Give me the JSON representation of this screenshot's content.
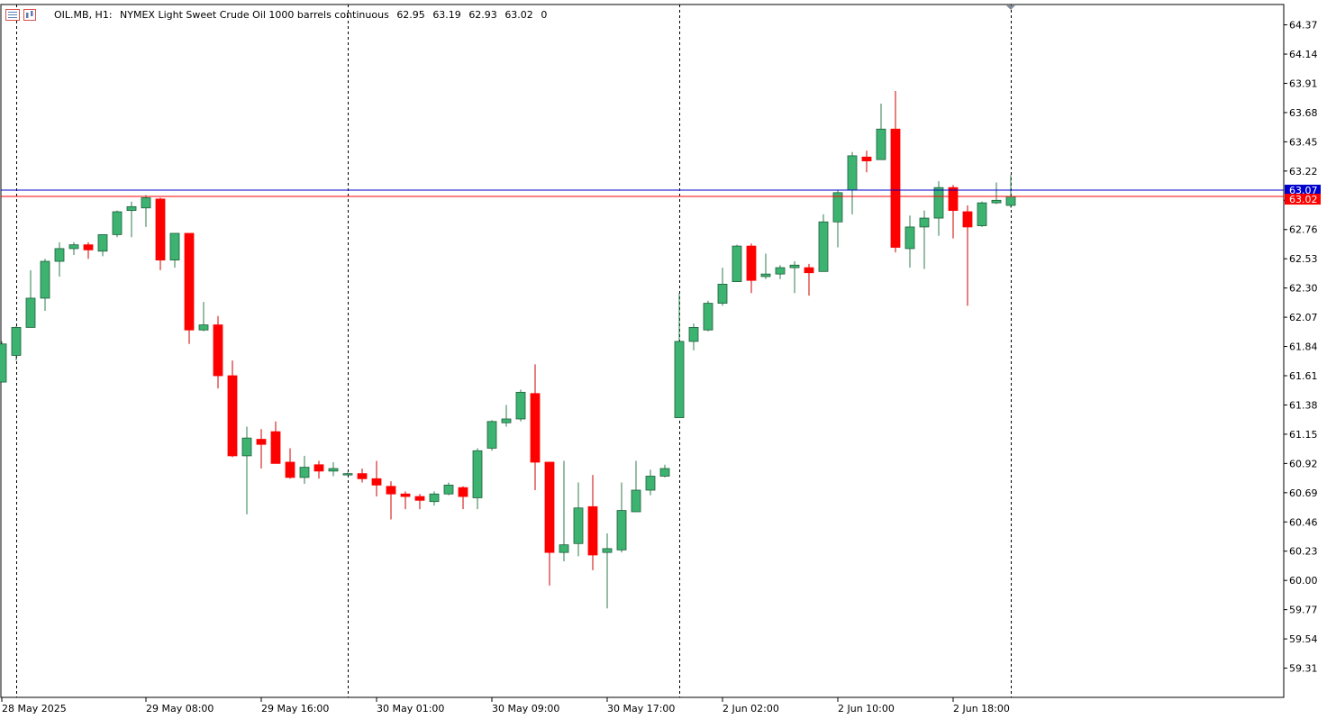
{
  "header": {
    "symbol": "OIL.MB, H1:",
    "description": "NYMEX Light Sweet Crude Oil 1000 barrels continuous",
    "open": "62.95",
    "high": "63.19",
    "low": "62.93",
    "close": "63.02",
    "volume": "0"
  },
  "icons": [
    "symbol-list-icon",
    "chart-type-icon"
  ],
  "colors": {
    "bull": "#3CB371",
    "bear": "#FF0000",
    "ask_line": "#0000CD",
    "bid_line": "#FF0000",
    "grid": "#000000"
  },
  "price_labels": {
    "ask": "63.07",
    "bid": "63.02"
  },
  "chart_data": {
    "type": "candlestick",
    "ylim": [
      59.08,
      64.53
    ],
    "yticks": [
      "64.37",
      "64.14",
      "63.91",
      "63.68",
      "63.45",
      "63.22",
      "62.99",
      "62.76",
      "62.53",
      "62.30",
      "62.07",
      "61.84",
      "61.61",
      "61.38",
      "61.15",
      "60.92",
      "60.69",
      "60.46",
      "60.23",
      "60.00",
      "59.77",
      "59.54",
      "59.31"
    ],
    "xticks": [
      {
        "label": "28 May 2025",
        "index": 0
      },
      {
        "label": "29 May 08:00",
        "index": 10
      },
      {
        "label": "29 May 16:00",
        "index": 18
      },
      {
        "label": "30 May 01:00",
        "index": 26
      },
      {
        "label": "30 May 09:00",
        "index": 34
      },
      {
        "label": "30 May 17:00",
        "index": 42
      },
      {
        "label": "2 Jun 02:00",
        "index": 50
      },
      {
        "label": "2 Jun 10:00",
        "index": 58
      },
      {
        "label": "2 Jun 18:00",
        "index": 66
      }
    ],
    "separators": [
      1,
      24,
      47,
      70
    ],
    "candles": [
      {
        "o": 61.56,
        "h": 61.88,
        "l": 61.56,
        "c": 61.86
      },
      {
        "o": 61.77,
        "h": 62.0,
        "l": 61.73,
        "c": 61.99
      },
      {
        "o": 61.99,
        "h": 62.44,
        "l": 61.99,
        "c": 62.22
      },
      {
        "o": 62.22,
        "h": 62.53,
        "l": 62.12,
        "c": 62.51
      },
      {
        "o": 62.51,
        "h": 62.66,
        "l": 62.39,
        "c": 62.61
      },
      {
        "o": 62.61,
        "h": 62.66,
        "l": 62.56,
        "c": 62.64
      },
      {
        "o": 62.64,
        "h": 62.66,
        "l": 62.53,
        "c": 62.6
      },
      {
        "o": 62.59,
        "h": 62.72,
        "l": 62.55,
        "c": 62.72
      },
      {
        "o": 62.72,
        "h": 62.91,
        "l": 62.7,
        "c": 62.9
      },
      {
        "o": 62.91,
        "h": 62.98,
        "l": 62.7,
        "c": 62.94
      },
      {
        "o": 62.93,
        "h": 63.03,
        "l": 62.78,
        "c": 63.01
      },
      {
        "o": 63.0,
        "h": 63.01,
        "l": 62.44,
        "c": 62.52
      },
      {
        "o": 62.52,
        "h": 62.73,
        "l": 62.46,
        "c": 62.73
      },
      {
        "o": 62.73,
        "h": 62.73,
        "l": 61.86,
        "c": 61.97
      },
      {
        "o": 61.97,
        "h": 62.19,
        "l": 61.96,
        "c": 62.01
      },
      {
        "o": 62.01,
        "h": 62.08,
        "l": 61.51,
        "c": 61.61
      },
      {
        "o": 61.61,
        "h": 61.73,
        "l": 60.97,
        "c": 60.98
      },
      {
        "o": 60.98,
        "h": 61.21,
        "l": 60.52,
        "c": 61.12
      },
      {
        "o": 61.11,
        "h": 61.19,
        "l": 60.88,
        "c": 61.07
      },
      {
        "o": 61.17,
        "h": 61.25,
        "l": 60.92,
        "c": 60.92
      },
      {
        "o": 60.93,
        "h": 61.04,
        "l": 60.8,
        "c": 60.81
      },
      {
        "o": 60.81,
        "h": 60.98,
        "l": 60.76,
        "c": 60.89
      },
      {
        "o": 60.91,
        "h": 60.94,
        "l": 60.8,
        "c": 60.86
      },
      {
        "o": 60.86,
        "h": 60.93,
        "l": 60.82,
        "c": 60.88
      },
      {
        "o": 60.84,
        "h": 60.85,
        "l": 60.83,
        "c": 60.84
      },
      {
        "o": 60.84,
        "h": 60.88,
        "l": 60.77,
        "c": 60.8
      },
      {
        "o": 60.8,
        "h": 60.94,
        "l": 60.66,
        "c": 60.75
      },
      {
        "o": 60.74,
        "h": 60.78,
        "l": 60.48,
        "c": 60.68
      },
      {
        "o": 60.68,
        "h": 60.7,
        "l": 60.56,
        "c": 60.66
      },
      {
        "o": 60.66,
        "h": 60.68,
        "l": 60.56,
        "c": 60.63
      },
      {
        "o": 60.62,
        "h": 60.7,
        "l": 60.59,
        "c": 60.68
      },
      {
        "o": 60.68,
        "h": 60.77,
        "l": 60.67,
        "c": 60.75
      },
      {
        "o": 60.73,
        "h": 60.74,
        "l": 60.56,
        "c": 60.66
      },
      {
        "o": 60.65,
        "h": 61.04,
        "l": 60.56,
        "c": 61.02
      },
      {
        "o": 61.04,
        "h": 61.26,
        "l": 61.02,
        "c": 61.25
      },
      {
        "o": 61.24,
        "h": 61.38,
        "l": 61.21,
        "c": 61.27
      },
      {
        "o": 61.27,
        "h": 61.5,
        "l": 61.25,
        "c": 61.48
      },
      {
        "o": 61.47,
        "h": 61.7,
        "l": 60.71,
        "c": 60.93
      },
      {
        "o": 60.93,
        "h": 60.93,
        "l": 59.96,
        "c": 60.22
      },
      {
        "o": 60.22,
        "h": 60.94,
        "l": 60.15,
        "c": 60.28
      },
      {
        "o": 60.29,
        "h": 60.77,
        "l": 60.19,
        "c": 60.57
      },
      {
        "o": 60.58,
        "h": 60.83,
        "l": 60.08,
        "c": 60.2
      },
      {
        "o": 60.22,
        "h": 60.37,
        "l": 59.78,
        "c": 60.25
      },
      {
        "o": 60.24,
        "h": 60.77,
        "l": 60.22,
        "c": 60.55
      },
      {
        "o": 60.54,
        "h": 60.94,
        "l": 60.54,
        "c": 60.71
      },
      {
        "o": 60.71,
        "h": 60.87,
        "l": 60.67,
        "c": 60.82
      },
      {
        "o": 60.82,
        "h": 60.91,
        "l": 60.81,
        "c": 60.88
      },
      {
        "o": 61.28,
        "h": 62.26,
        "l": 61.28,
        "c": 61.88
      },
      {
        "o": 61.88,
        "h": 62.02,
        "l": 61.81,
        "c": 61.99
      },
      {
        "o": 61.97,
        "h": 62.2,
        "l": 61.96,
        "c": 62.18
      },
      {
        "o": 62.18,
        "h": 62.46,
        "l": 62.16,
        "c": 62.33
      },
      {
        "o": 62.35,
        "h": 62.64,
        "l": 62.35,
        "c": 62.63
      },
      {
        "o": 62.63,
        "h": 62.65,
        "l": 62.26,
        "c": 62.36
      },
      {
        "o": 62.39,
        "h": 62.57,
        "l": 62.37,
        "c": 62.41
      },
      {
        "o": 62.41,
        "h": 62.48,
        "l": 62.37,
        "c": 62.46
      },
      {
        "o": 62.46,
        "h": 62.51,
        "l": 62.26,
        "c": 62.48
      },
      {
        "o": 62.46,
        "h": 62.49,
        "l": 62.24,
        "c": 62.42
      },
      {
        "o": 62.43,
        "h": 62.88,
        "l": 62.43,
        "c": 62.82
      },
      {
        "o": 62.82,
        "h": 63.07,
        "l": 62.62,
        "c": 63.05
      },
      {
        "o": 63.07,
        "h": 63.37,
        "l": 62.88,
        "c": 63.34
      },
      {
        "o": 63.33,
        "h": 63.38,
        "l": 63.21,
        "c": 63.3
      },
      {
        "o": 63.31,
        "h": 63.75,
        "l": 63.31,
        "c": 63.55
      },
      {
        "o": 63.55,
        "h": 63.85,
        "l": 62.58,
        "c": 62.62
      },
      {
        "o": 62.61,
        "h": 62.87,
        "l": 62.46,
        "c": 62.78
      },
      {
        "o": 62.78,
        "h": 62.91,
        "l": 62.45,
        "c": 62.85
      },
      {
        "o": 62.85,
        "h": 63.14,
        "l": 62.71,
        "c": 63.09
      },
      {
        "o": 63.09,
        "h": 63.11,
        "l": 62.69,
        "c": 62.91
      },
      {
        "o": 62.9,
        "h": 62.95,
        "l": 62.16,
        "c": 62.78
      },
      {
        "o": 62.79,
        "h": 62.98,
        "l": 62.78,
        "c": 62.97
      },
      {
        "o": 62.97,
        "h": 63.13,
        "l": 62.96,
        "c": 62.99
      },
      {
        "o": 62.95,
        "h": 63.19,
        "l": 62.93,
        "c": 63.02
      }
    ]
  }
}
